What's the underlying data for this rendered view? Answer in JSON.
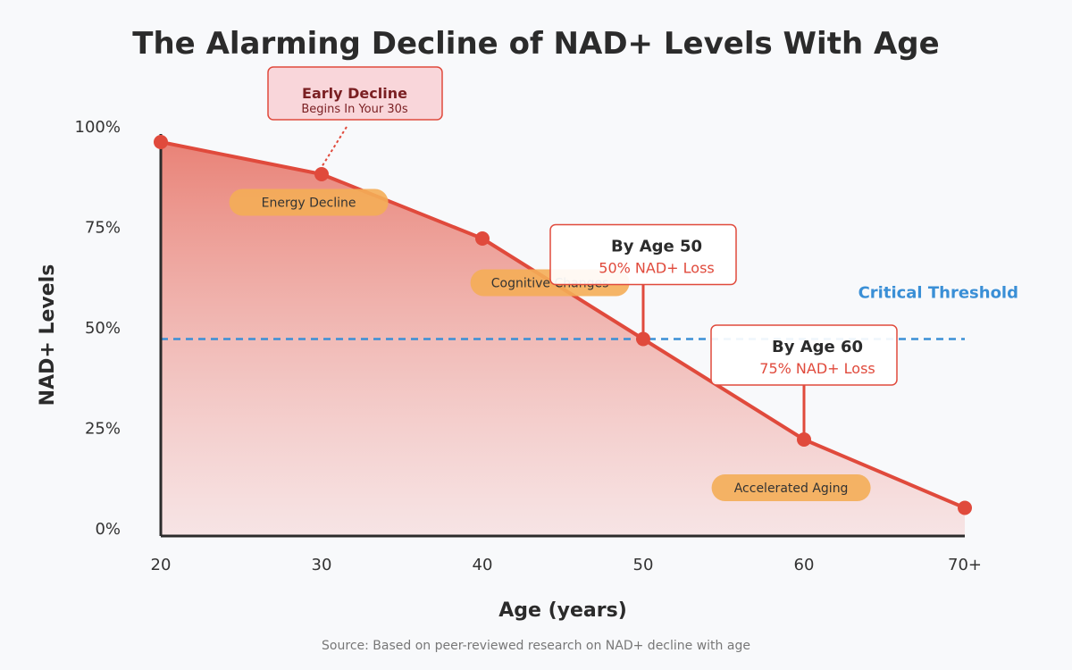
{
  "chart_data": {
    "type": "area",
    "title": "The Alarming Decline of NAD+ Levels With Age",
    "xlabel": "Age (years)",
    "ylabel": "NAD+ Levels",
    "x": [
      20,
      30,
      40,
      50,
      60,
      70
    ],
    "categories": [
      "20",
      "30",
      "40",
      "50",
      "60",
      "70+"
    ],
    "values": [
      98,
      90,
      74,
      49,
      24,
      7
    ],
    "ylim": [
      0,
      100
    ],
    "yticks": [
      "0%",
      "25%",
      "50%",
      "75%",
      "100%"
    ],
    "grid": false,
    "colors": {
      "line": "#e04a3c",
      "fill_top": "#e87c70",
      "threshold": "#3a8fd6",
      "stage_pill": "#f4ad57",
      "early_box_fill": "#f9d6da",
      "early_box_border": "#e04a3c",
      "callout_border": "#e04a3c",
      "callout_sub": "#e04a3c"
    },
    "threshold": {
      "value": 49,
      "label": "Critical Threshold"
    },
    "early_annotation": {
      "title": "Early Decline",
      "subtitle": "Begins In Your 30s",
      "x": 30
    },
    "callouts": [
      {
        "title": "By Age 50",
        "subtitle": "50% NAD+ Loss",
        "x": 50
      },
      {
        "title": "By Age 60",
        "subtitle": "75% NAD+ Loss",
        "x": 60
      }
    ],
    "stages": [
      {
        "label": "Energy Decline",
        "x": 29.2,
        "y": 83
      },
      {
        "label": "Cognitive Changes",
        "x": 44.2,
        "y": 63
      },
      {
        "label": "Accelerated Aging",
        "x": 59.2,
        "y": 12
      }
    ],
    "source": "Source: Based on peer-reviewed research on NAD+ decline with age"
  }
}
